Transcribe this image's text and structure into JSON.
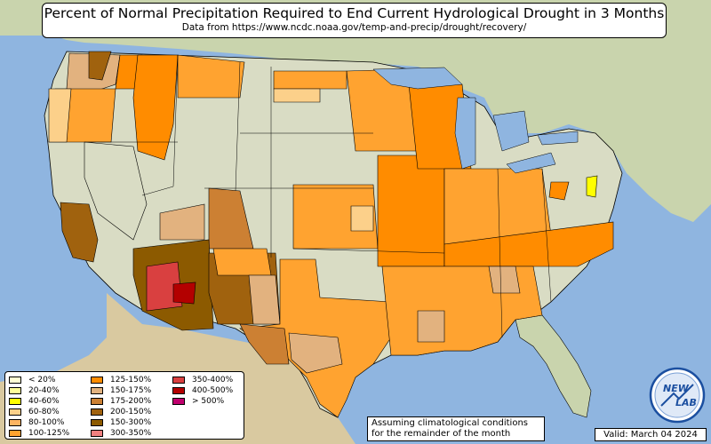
{
  "title": "Percent of Normal Precipitation Required to End Current Hydrological Drought in 3 Months",
  "subtitle": "Data from https://www.ncdc.noaa.gov/temp-and-precip/drought/recovery/",
  "legend": [
    {
      "label": "< 20%",
      "color": "#ffffd4"
    },
    {
      "label": "20-40%",
      "color": "#ffff99"
    },
    {
      "label": "40-60%",
      "color": "#ffff00"
    },
    {
      "label": "60-80%",
      "color": "#fcd08a"
    },
    {
      "label": "80-100%",
      "color": "#fdb462"
    },
    {
      "label": "100-125%",
      "color": "#ffa330"
    },
    {
      "label": "125-150%",
      "color": "#ff8c00"
    },
    {
      "label": "150-175%",
      "color": "#e2b27f"
    },
    {
      "label": "175-200%",
      "color": "#cc8033"
    },
    {
      "label": "200-150%",
      "color": "#a0620e"
    },
    {
      "label": "150-300%",
      "color": "#8c5a00"
    },
    {
      "label": "300-350%",
      "color": "#f08080"
    },
    {
      "label": "350-400%",
      "color": "#d94040"
    },
    {
      "label": "400-500%",
      "color": "#b30000"
    },
    {
      "label": "> 500%",
      "color": "#c0006e"
    }
  ],
  "note": {
    "line1": "Assuming climatological conditions",
    "line2": "for the remainder of the month"
  },
  "valid": "Valid: March 04 2024",
  "logo": {
    "text_top": "NEW",
    "text_bottom": "LAB"
  },
  "colors": {
    "water": "#8fb5e0",
    "land": "#d9dcc4",
    "land_green": "#c9d4ad",
    "border": "#000000"
  }
}
